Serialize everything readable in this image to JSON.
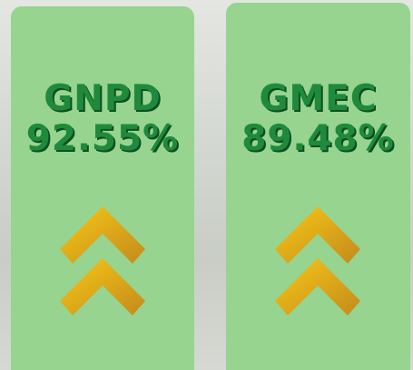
{
  "cards": [
    {
      "label": "GNPD",
      "value": "92.55%"
    },
    {
      "label": "GMEC",
      "value": "89.48%"
    }
  ]
}
